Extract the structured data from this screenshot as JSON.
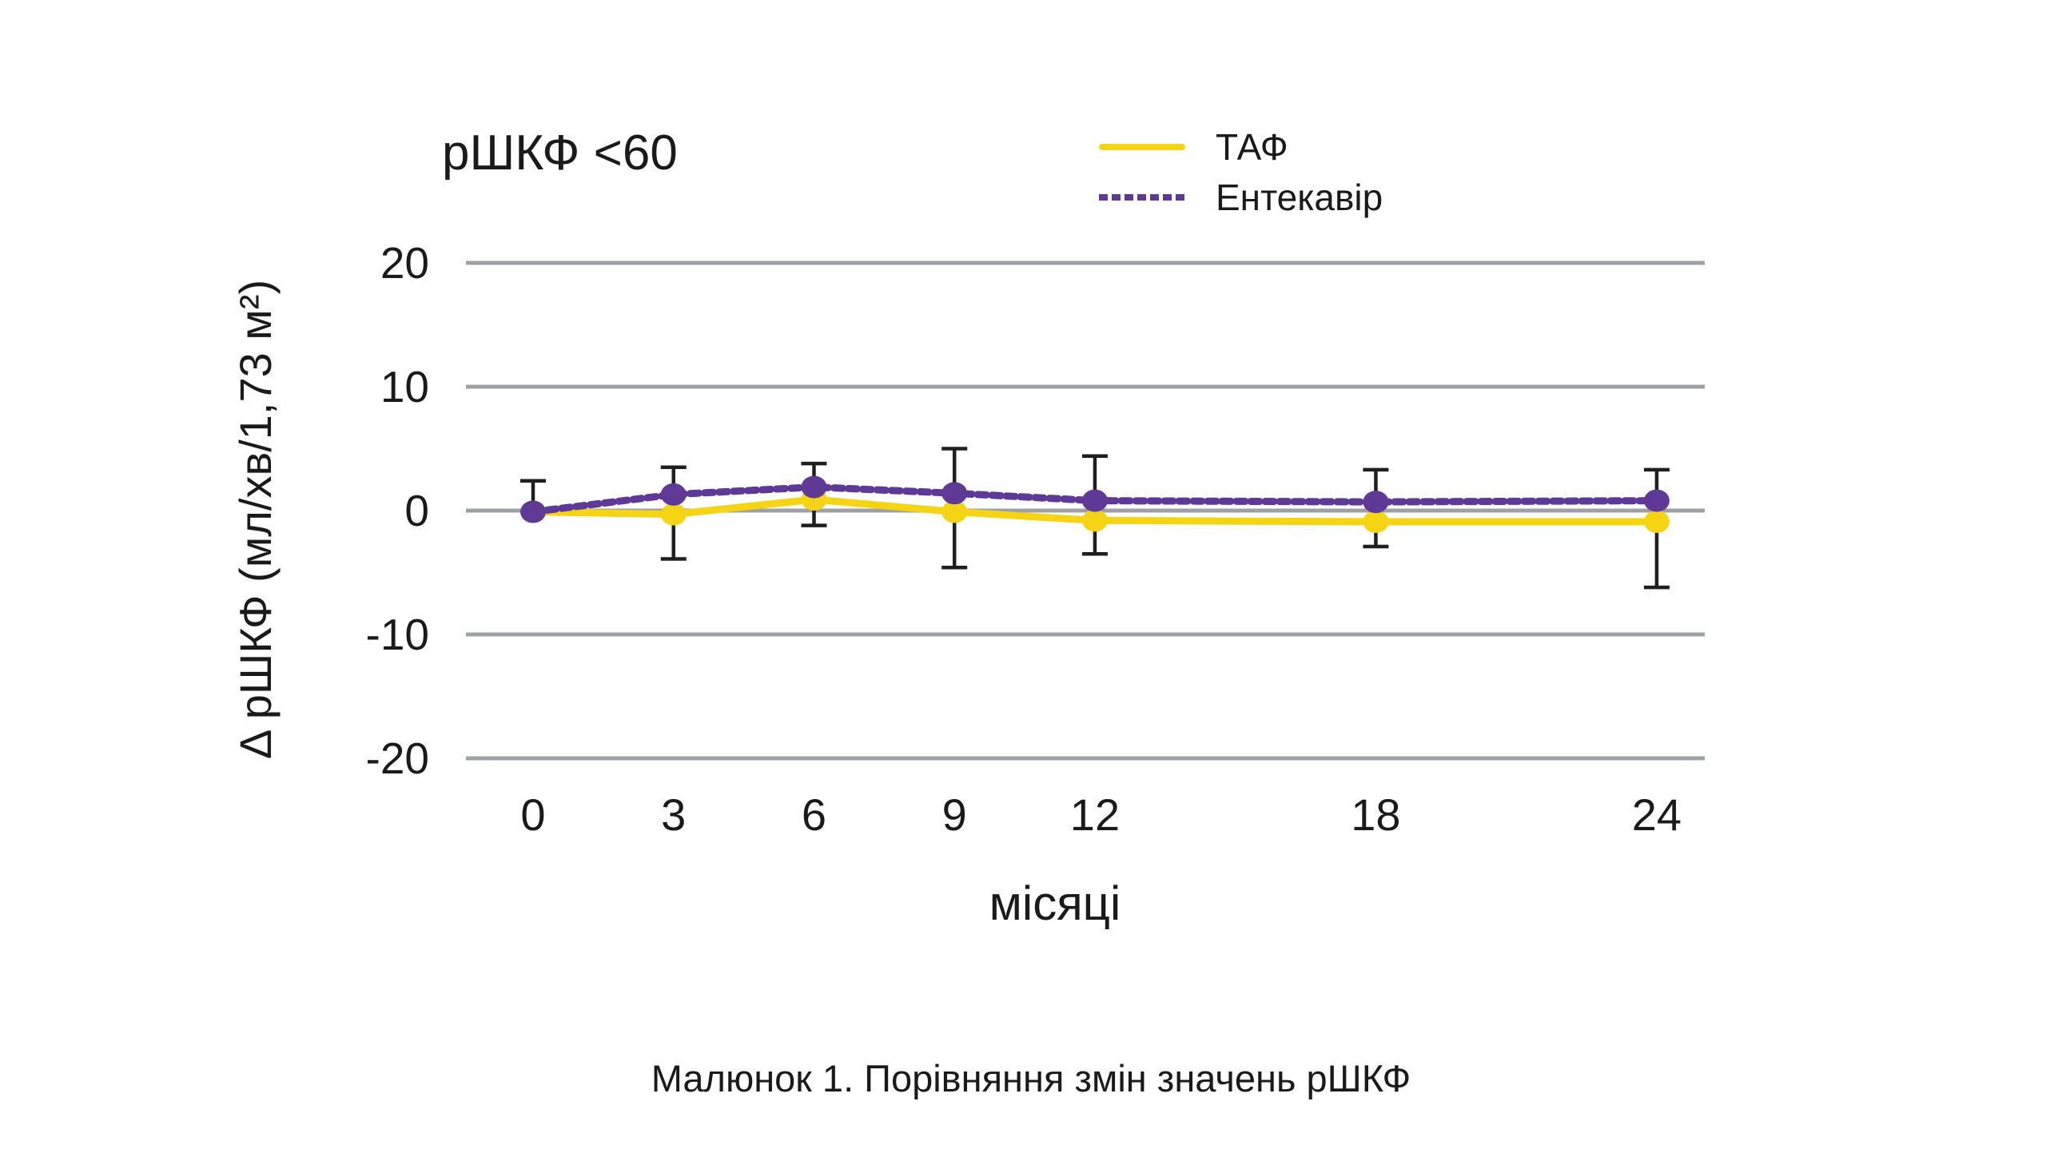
{
  "title": "рШКФ <60",
  "legend": {
    "taf_label": "ТАФ",
    "entecavir_label": "Ентекавір"
  },
  "y_axis": {
    "label": "Δ рШКФ (мл/хв/1,73 м²)",
    "ticks": [
      "20",
      "10",
      "0",
      "-10",
      "-20"
    ],
    "tick_values": [
      20,
      10,
      0,
      -10,
      -20
    ]
  },
  "x_axis": {
    "label": "місяці",
    "ticks": [
      "0",
      "3",
      "6",
      "9",
      "12",
      "18",
      "24"
    ],
    "tick_values": [
      0,
      3,
      6,
      9,
      12,
      18,
      24
    ]
  },
  "caption": "Малюнок 1. Порівняння змін значень рШКФ",
  "colors": {
    "taf": "#F5D414",
    "entecavir": "#5E3A96",
    "gridline": "#9EA0A3",
    "error_bar": "#1F1F1F",
    "text": "#1A1A1A"
  },
  "chart_data": {
    "type": "line",
    "title": "рШКФ <60",
    "xlabel": "місяці",
    "ylabel": "Δ рШКФ (мл/хв/1,73 м²)",
    "x": [
      0,
      3,
      6,
      9,
      12,
      18,
      24
    ],
    "series": [
      {
        "name": "ТАФ",
        "style": "solid",
        "color_key": "taf",
        "values": [
          -0.1,
          -0.3,
          0.9,
          -0.1,
          -0.8,
          -0.9,
          -0.9
        ]
      },
      {
        "name": "Ентекавір",
        "style": "dashed",
        "color_key": "entecavir",
        "values": [
          -0.1,
          1.3,
          1.9,
          1.4,
          0.8,
          0.7,
          0.8
        ]
      }
    ],
    "error_bars": {
      "upper": [
        2.4,
        3.5,
        3.8,
        5.0,
        4.4,
        3.3,
        3.3
      ],
      "lower": [
        null,
        -3.9,
        -1.2,
        -4.6,
        -3.5,
        -2.9,
        -6.2
      ]
    },
    "ylim": [
      -20,
      20
    ],
    "xlim": [
      0,
      24
    ],
    "grid": "horizontal",
    "legend_position": "top-right"
  }
}
